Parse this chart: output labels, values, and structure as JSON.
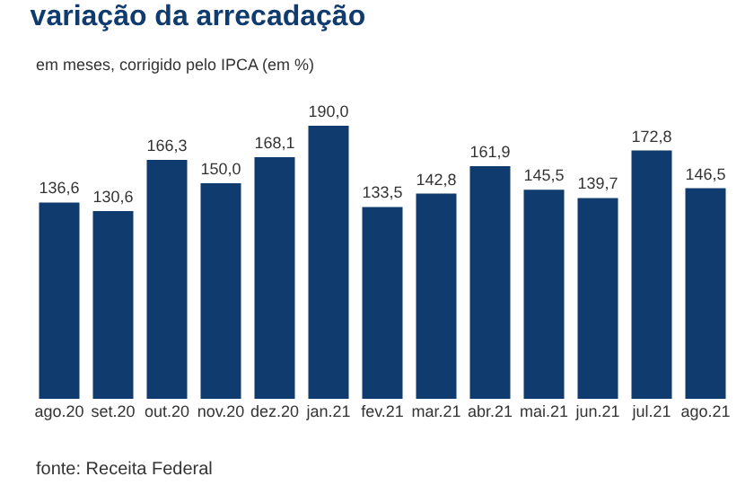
{
  "chart_data": {
    "type": "bar",
    "title": "variação da arrecadação",
    "subtitle": "em meses, corrigido pelo IPCA (em %)",
    "categories": [
      "ago.20",
      "set.20",
      "out.20",
      "nov.20",
      "dez.20",
      "jan.21",
      "fev.21",
      "mar.21",
      "abr.21",
      "mai.21",
      "jun.21",
      "jul.21",
      "ago.21"
    ],
    "values": [
      136.6,
      130.6,
      166.3,
      150.0,
      168.1,
      190.0,
      133.5,
      142.8,
      161.9,
      145.5,
      139.7,
      172.8,
      146.5
    ],
    "value_labels": [
      "136,6",
      "130,6",
      "166,3",
      "150,0",
      "168,1",
      "190,0",
      "133,5",
      "142,8",
      "161,9",
      "145,5",
      "139,7",
      "172,8",
      "146,5"
    ],
    "color": "#0f3b6e",
    "grid": false,
    "legend": false,
    "annotations": [
      "fonte: Receita Federal"
    ]
  }
}
